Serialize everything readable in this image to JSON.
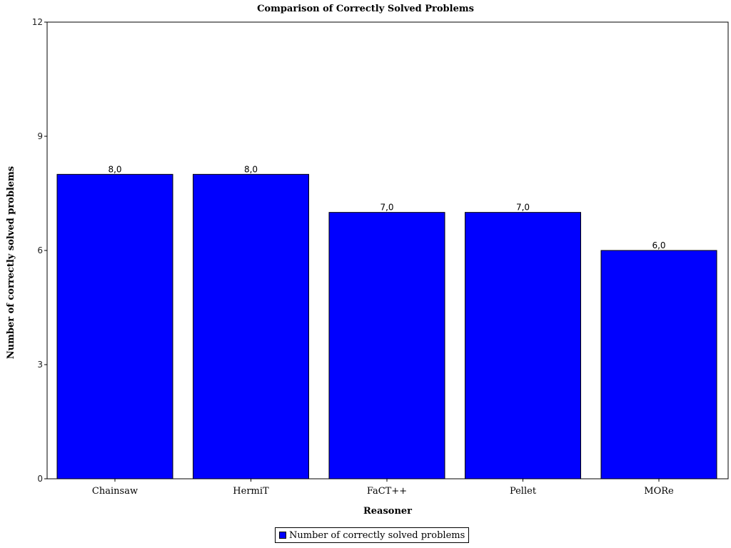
{
  "chart_data": {
    "type": "bar",
    "title": "Comparison of Correctly Solved Problems",
    "xlabel": "Reasoner",
    "ylabel": "Number of correctly solved problems",
    "categories": [
      "Chainsaw",
      "HermiT",
      "FaCT++",
      "Pellet",
      "MORe"
    ],
    "series": [
      {
        "name": "Number of correctly solved problems",
        "values": [
          8,
          8,
          7,
          7,
          6
        ],
        "labels": [
          "8,0",
          "8,0",
          "7,0",
          "7,0",
          "6,0"
        ],
        "color": "#0000ff"
      }
    ],
    "ylim": [
      0,
      12
    ],
    "yticks": [
      "0",
      "3",
      "6",
      "9",
      "12"
    ],
    "grid": false,
    "legend_position": "bottom-center"
  },
  "legend": {
    "label": "Number of correctly solved problems",
    "color": "#0000ff"
  }
}
